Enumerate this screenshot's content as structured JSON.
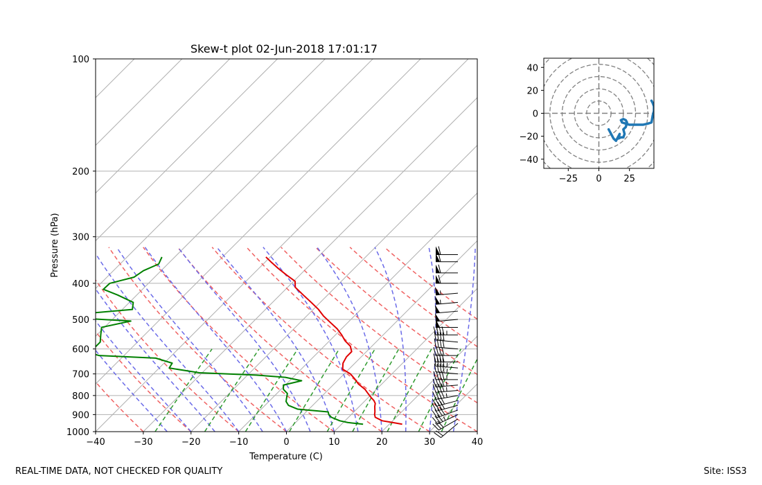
{
  "chart_data": [
    {
      "type": "skew-t",
      "title": "Skew-t plot 02-Jun-2018 17:01:17",
      "xlabel": "Temperature (C)",
      "ylabel": "Pressure (hPa)",
      "xlim": [
        -40,
        40
      ],
      "ylim": [
        1000,
        100
      ],
      "x_ticks": [
        "−40",
        "−30",
        "−20",
        "−10",
        "0",
        "10",
        "20",
        "30",
        "40"
      ],
      "x_tick_values": [
        -40,
        -30,
        -20,
        -10,
        0,
        10,
        20,
        30,
        40
      ],
      "y_ticks": [
        "100",
        "200",
        "300",
        "400",
        "500",
        "600",
        "700",
        "800",
        "900",
        "1000"
      ],
      "y_tick_values": [
        100,
        200,
        300,
        400,
        500,
        600,
        700,
        800,
        900,
        1000
      ],
      "isotherms_C": [
        -140,
        -130,
        -120,
        -110,
        -100,
        -90,
        -80,
        -70,
        -60,
        -50,
        -40,
        -30,
        -20,
        -10,
        0,
        10,
        20,
        30,
        40
      ],
      "dry_adiabats_C": [
        -30,
        -20,
        -10,
        0,
        10,
        20,
        30,
        40,
        50,
        60,
        70,
        80
      ],
      "moist_adiabats_C": [
        -25,
        -20,
        -15,
        -10,
        -5,
        0,
        5,
        10,
        15,
        20,
        25,
        30,
        35
      ],
      "mixing_ratio_lines": [
        0.0004,
        0.001,
        0.002,
        0.004,
        0.007,
        0.01,
        0.016,
        0.024,
        0.032
      ],
      "temperature_series": {
        "name": "Temperature",
        "color": "#e00000",
        "pressure": [
          955,
          945,
          935,
          915,
          900,
          885,
          870,
          855,
          840,
          825,
          810,
          790,
          770,
          745,
          720,
          700,
          680,
          655,
          630,
          610,
          590,
          570,
          550,
          530,
          510,
          490,
          470,
          450,
          430,
          410,
          395,
          380,
          365,
          350,
          340
        ],
        "temperature": [
          22.7,
          20.3,
          17.8,
          15.6,
          14.9,
          14.4,
          13.8,
          13.2,
          12.7,
          11.8,
          10.6,
          9.1,
          7.6,
          5.1,
          3.1,
          1.3,
          -1.3,
          -2.5,
          -3.1,
          -3.1,
          -4.5,
          -6.8,
          -8.7,
          -10.9,
          -13.6,
          -16.4,
          -18.9,
          -21.9,
          -25.1,
          -28.4,
          -29.7,
          -32.8,
          -35.9,
          -38.9,
          -40.9
        ]
      },
      "dewpoint_series": {
        "name": "Dewpoint",
        "color": "#008000",
        "pressure": [
          955,
          945,
          935,
          915,
          900,
          885,
          870,
          850,
          830,
          810,
          790,
          770,
          750,
          730,
          715,
          705,
          695,
          675,
          655,
          635,
          625,
          620,
          610,
          595,
          575,
          550,
          525,
          505,
          495,
          485,
          470,
          450,
          430,
          415,
          400,
          385,
          370,
          355,
          340
        ],
        "temperature": [
          14.5,
          10.9,
          8.9,
          6.4,
          5.3,
          4.6,
          -2.4,
          -5.1,
          -6.4,
          -7.1,
          -7.8,
          -9.5,
          -10.4,
          -7.5,
          -11.6,
          -18.2,
          -30.6,
          -37.9,
          -38.3,
          -42.8,
          -55.2,
          -56.4,
          -57.3,
          -57.8,
          -57.8,
          -59.2,
          -60.6,
          -55.8,
          -68.3,
          -69.1,
          -57.9,
          -59.2,
          -64.0,
          -68.2,
          -68.1,
          -64.3,
          -63.7,
          -61.9,
          -62.7
        ]
      },
      "wind_barbs": {
        "pressure": [
          950,
          925,
          900,
          875,
          850,
          825,
          800,
          775,
          750,
          725,
          700,
          675,
          650,
          625,
          600,
          575,
          550,
          525,
          500,
          475,
          450,
          425,
          400,
          375,
          350,
          335
        ],
        "speed_kt": [
          22,
          30,
          34,
          38,
          40,
          42,
          44,
          45,
          45,
          46,
          45,
          44,
          42,
          40,
          40,
          42,
          45,
          48,
          50,
          52,
          55,
          55,
          60,
          60,
          62,
          62
        ],
        "direction_deg": [
          230,
          240,
          245,
          250,
          255,
          255,
          260,
          265,
          265,
          270,
          275,
          275,
          270,
          270,
          275,
          275,
          270,
          270,
          265,
          265,
          265,
          265,
          270,
          270,
          270,
          270
        ]
      }
    },
    {
      "type": "hodograph",
      "xlim": [
        -45,
        45
      ],
      "ylim": [
        -48,
        48
      ],
      "x_ticks": [
        "−25",
        "0",
        "25"
      ],
      "x_tick_values": [
        -25,
        0,
        25
      ],
      "y_ticks": [
        "40",
        "20",
        "0",
        "−20",
        "−40"
      ],
      "y_tick_values": [
        40,
        20,
        0,
        -20,
        -40
      ],
      "rings": [
        10,
        20,
        30,
        40,
        50,
        60
      ],
      "line_color": "#1f77b4",
      "u": [
        8,
        10,
        12,
        14,
        16,
        17,
        16,
        18,
        20,
        21,
        20,
        22,
        23,
        22,
        20,
        18,
        19,
        22,
        25,
        28,
        32,
        36,
        40,
        43,
        44,
        45,
        45,
        44,
        43
      ],
      "v": [
        -14,
        -18,
        -22,
        -24,
        -20,
        -18,
        -22,
        -21,
        -21,
        -18,
        -14,
        -12,
        -8,
        -6,
        -5,
        -6,
        -8,
        -9,
        -10,
        -10,
        -10,
        -10,
        -9,
        -8,
        -2,
        2,
        6,
        9,
        11
      ]
    }
  ],
  "footer": {
    "left": "REAL-TIME DATA, NOT CHECKED FOR QUALITY",
    "right": "Site: ISS3"
  }
}
